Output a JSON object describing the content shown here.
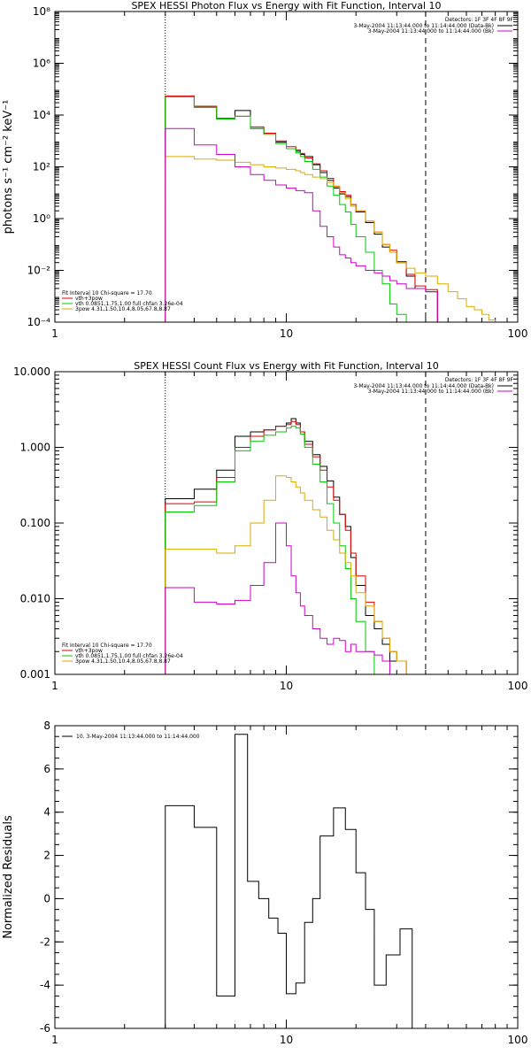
{
  "chart_data": [
    {
      "type": "line",
      "title": "SPEX HESSI Photon Flux vs Energy with Fit Function, Interval 10",
      "xlabel": "",
      "ylabel": "photons s⁻¹ cm⁻² keV⁻¹",
      "xscale": "log",
      "yscale": "log",
      "xlim": [
        1,
        100
      ],
      "ylim": [
        0.0001,
        100000000
      ],
      "xticks": [
        1,
        10,
        100
      ],
      "xtick_labels": [
        "1",
        "10",
        "100"
      ],
      "yticks": [
        0.0001,
        0.01,
        1,
        100,
        10000,
        1000000,
        100000000
      ],
      "ytick_labels": [
        "10⁻⁴",
        "10⁻²",
        "10⁰",
        "10²",
        "10⁴",
        "10⁶",
        "10⁸"
      ],
      "vlines": [
        {
          "x": 3,
          "style": "dotted"
        },
        {
          "x": 40,
          "style": "dashed"
        }
      ],
      "edges": [
        3.0,
        3.5,
        4.0,
        4.5,
        5.0,
        5.5,
        6.0,
        6.5,
        7.0,
        7.5,
        8.0,
        8.5,
        9.0,
        9.5,
        10.0,
        10.5,
        11.0,
        11.5,
        12.0,
        13.0,
        14.0,
        15.0,
        16.0,
        17.0,
        18.0,
        19.0,
        20.0,
        22.0,
        24.0,
        26.0,
        28.0,
        30.0,
        33.0,
        36.0,
        40.0,
        45.0,
        50.0,
        55.0,
        60.0,
        65.0,
        70.0,
        75.0,
        80.0
      ],
      "legend_top": {
        "header": "Detectors: 1F 3F 4F 8F 9F",
        "entries": [
          {
            "label": "3-May-2004 11:13:44.000 to 11:14:44.000 (Data-Bk)",
            "color": "#000000"
          },
          {
            "label": "3-May-2004 11:13:44.000 to 11:14:44.000 (Bk)",
            "color": "#cc00cc"
          }
        ]
      },
      "legend_fit": {
        "header": "Fit Interval 10    Chi-square = 17.70",
        "entries": [
          {
            "label": "vth+3pow",
            "color": "#dd0000"
          },
          {
            "label": "vth 0.0851,1.75,1.00  full chfan 3.26e-04",
            "color": "#00cc00"
          },
          {
            "label": "3pow 4.31,1.50,10.4,8.05,67.8,8.87",
            "color": "#ddaa00"
          }
        ]
      },
      "series": [
        {
          "name": "Data-Bk",
          "color": "#000000",
          "values": [
            50000,
            50000,
            20000,
            20000,
            7000,
            7000,
            15000,
            15000,
            3000,
            3000,
            2000,
            2000,
            900,
            900,
            500,
            500,
            400,
            300,
            250,
            120,
            60,
            30,
            15,
            9,
            7,
            3,
            1.8,
            0.7,
            0.25,
            0.08,
            0.05,
            0.02,
            0.006,
            0.002,
            0.0015
          ]
        },
        {
          "name": "vth+3pow",
          "color": "#dd0000",
          "values": [
            55000,
            55000,
            22000,
            22000,
            7500,
            7500,
            9000,
            9000,
            3500,
            3500,
            2000,
            2000,
            1000,
            1000,
            600,
            600,
            450,
            330,
            220,
            130,
            70,
            36,
            17,
            11,
            8,
            3.5,
            2,
            0.8,
            0.3,
            0.1,
            0.06,
            0.022,
            0.007,
            0.0025,
            0.0018
          ]
        },
        {
          "name": "vth",
          "color": "#00cc00",
          "values": [
            50000,
            50000,
            20000,
            20000,
            7000,
            7000,
            9000,
            9000,
            3000,
            3000,
            1800,
            1800,
            800,
            800,
            500,
            500,
            350,
            250,
            160,
            80,
            40,
            18,
            8,
            3.5,
            1.8,
            0.6,
            0.2,
            0.05,
            0.01,
            0.003,
            0.0005,
            0.0002,
            0.0001,
            0.0001,
            0.0001
          ]
        },
        {
          "name": "3pow",
          "color": "#ddaa00",
          "values": [
            250,
            250,
            200,
            200,
            180,
            180,
            150,
            150,
            120,
            120,
            100,
            100,
            90,
            90,
            80,
            80,
            70,
            60,
            50,
            40,
            35,
            25,
            18,
            10,
            6,
            3,
            2,
            0.8,
            0.3,
            0.1,
            0.05,
            0.02,
            0.012,
            0.008,
            0.006,
            0.003,
            0.0015,
            0.0008,
            0.0004,
            0.0003,
            0.0002,
            0.00012
          ]
        },
        {
          "name": "Bk",
          "color": "#cc00cc",
          "values": [
            3000,
            3000,
            700,
            700,
            300,
            300,
            100,
            100,
            50,
            50,
            30,
            30,
            20,
            20,
            15,
            15,
            12,
            12,
            10,
            2,
            0.5,
            0.2,
            0.08,
            0.04,
            0.03,
            0.02,
            0.015,
            0.01,
            0.008,
            0.006,
            0.004,
            0.003,
            0.002,
            0.002,
            0.0015
          ]
        }
      ]
    },
    {
      "type": "line",
      "title": "SPEX HESSI Count Flux vs Energy with Fit Function, Interval 10",
      "xlabel": "",
      "ylabel": "",
      "xscale": "log",
      "yscale": "log",
      "xlim": [
        1,
        100
      ],
      "ylim": [
        0.001,
        10
      ],
      "xticks": [
        1,
        10,
        100
      ],
      "xtick_labels": [
        "1",
        "10",
        "100"
      ],
      "yticks": [
        0.001,
        0.01,
        0.1,
        1,
        10
      ],
      "ytick_labels": [
        "0.001",
        "0.010",
        "0.100",
        "1.000",
        "10.000"
      ],
      "vlines": [
        {
          "x": 3,
          "style": "dotted"
        },
        {
          "x": 40,
          "style": "dashed"
        }
      ],
      "edges": [
        3.0,
        3.5,
        4.0,
        4.5,
        5.0,
        5.5,
        6.0,
        6.5,
        7.0,
        7.5,
        8.0,
        8.5,
        9.0,
        9.5,
        10.0,
        10.5,
        11.0,
        11.5,
        12.0,
        13.0,
        14.0,
        15.0,
        16.0,
        17.0,
        18.0,
        19.0,
        20.0,
        22.0,
        24.0,
        26.0,
        28.0,
        30.0,
        33.0,
        36.0,
        40.0,
        45.0
      ],
      "legend_top": {
        "header": "Detectors: 1F 3F 4F 8F 9F",
        "entries": [
          {
            "label": "3-May-2004 11:13:44.000 to 11:14:44.000 (Data-Bk)",
            "color": "#000000"
          },
          {
            "label": "3-May-2004 11:13:44.000 to 11:14:44.000 (Bk)",
            "color": "#cc00cc"
          }
        ]
      },
      "legend_fit": {
        "header": "Fit Interval 10    Chi-square = 17.70",
        "entries": [
          {
            "label": "vth+3pow",
            "color": "#dd0000"
          },
          {
            "label": "vth 0.0851,1.75,1.00  full chfan 3.26e-04",
            "color": "#00cc00"
          },
          {
            "label": "3pow 4.31,1.50,10.4,8.05,67.8,8.87",
            "color": "#ddaa00"
          }
        ]
      },
      "series": [
        {
          "name": "Data-Bk",
          "color": "#000000",
          "values": [
            0.21,
            0.21,
            0.28,
            0.28,
            0.5,
            0.5,
            1.4,
            1.4,
            1.6,
            1.6,
            1.7,
            1.7,
            1.9,
            1.9,
            2.1,
            2.4,
            2.1,
            1.6,
            1.2,
            0.8,
            0.56,
            0.36,
            0.22,
            0.13,
            0.09,
            0.035,
            0.015,
            0.006,
            0.004,
            0.0025,
            0.0015,
            0.0015,
            0.001,
            0.001,
            0.001
          ]
        },
        {
          "name": "vth+3pow",
          "color": "#dd0000",
          "values": [
            0.18,
            0.18,
            0.19,
            0.19,
            0.4,
            0.4,
            1.0,
            1.0,
            1.4,
            1.4,
            1.7,
            1.7,
            1.9,
            1.9,
            2.0,
            2.2,
            2.0,
            1.6,
            1.1,
            0.75,
            0.5,
            0.3,
            0.2,
            0.13,
            0.08,
            0.04,
            0.02,
            0.009,
            0.005,
            0.003,
            0.002,
            0.0015,
            0.001,
            0.001,
            0.001
          ]
        },
        {
          "name": "vth",
          "color": "#00cc00",
          "values": [
            0.14,
            0.14,
            0.17,
            0.17,
            0.35,
            0.35,
            0.9,
            0.9,
            1.2,
            1.2,
            1.45,
            1.45,
            1.6,
            1.6,
            1.8,
            1.9,
            1.8,
            1.5,
            1.0,
            0.6,
            0.35,
            0.18,
            0.1,
            0.05,
            0.025,
            0.01,
            0.005,
            0.002,
            0.001,
            0.001,
            0.001,
            0.001,
            0.001,
            0.001,
            0.001
          ]
        },
        {
          "name": "3pow",
          "color": "#ddaa00",
          "values": [
            0.045,
            0.045,
            0.045,
            0.045,
            0.04,
            0.04,
            0.05,
            0.05,
            0.1,
            0.1,
            0.2,
            0.2,
            0.42,
            0.42,
            0.4,
            0.35,
            0.3,
            0.25,
            0.2,
            0.15,
            0.12,
            0.08,
            0.06,
            0.04,
            0.03,
            0.02,
            0.012,
            0.008,
            0.005,
            0.003,
            0.002,
            0.0015,
            0.001,
            0.001,
            0.001
          ]
        },
        {
          "name": "Bk",
          "color": "#cc00cc",
          "values": [
            0.014,
            0.014,
            0.009,
            0.009,
            0.0085,
            0.0085,
            0.0095,
            0.0095,
            0.015,
            0.015,
            0.03,
            0.03,
            0.1,
            0.1,
            0.05,
            0.02,
            0.012,
            0.008,
            0.006,
            0.004,
            0.003,
            0.0025,
            0.003,
            0.0028,
            0.002,
            0.0025,
            0.002,
            0.002,
            0.0018,
            0.0015,
            0.001,
            0.001,
            0.001,
            0.001,
            0.001
          ]
        }
      ]
    },
    {
      "type": "line",
      "title": "",
      "xlabel": "",
      "ylabel": "Normalized Residuals",
      "xscale": "log",
      "yscale": "linear",
      "xlim": [
        1,
        100
      ],
      "ylim": [
        -6,
        8
      ],
      "xticks": [
        1,
        10,
        100
      ],
      "xtick_labels": [
        "1",
        "10",
        "100"
      ],
      "yticks": [
        -6,
        -4,
        -2,
        0,
        2,
        4,
        6,
        8
      ],
      "ytick_labels": [
        "-6",
        "-4",
        "-2",
        "0",
        "2",
        "4",
        "6",
        "8"
      ],
      "edges": [
        3.0,
        4.0,
        5.0,
        6.0,
        6.8,
        7.6,
        8.4,
        9.2,
        10.0,
        11.0,
        12.0,
        13.0,
        14.0,
        16.0,
        18.0,
        20.0,
        22.0,
        24.0,
        27.0,
        31.0,
        35.0,
        40.0
      ],
      "legend_top": {
        "header": "",
        "entries": [
          {
            "label": "10.  3-May-2004 11:13:44.000 to 11:14:44.000",
            "color": "#000000"
          }
        ]
      },
      "series": [
        {
          "name": "10.  3-May-2004 11:13:44.000 to 11:14:44.000",
          "color": "#000000",
          "values": [
            4.3,
            3.3,
            -4.5,
            7.6,
            0.8,
            0.0,
            -0.9,
            -1.6,
            -4.4,
            -3.9,
            -1.1,
            0.0,
            2.9,
            4.2,
            3.2,
            1.2,
            -0.5,
            -4.0,
            -2.6,
            -1.4,
            -6.0
          ]
        }
      ]
    }
  ]
}
